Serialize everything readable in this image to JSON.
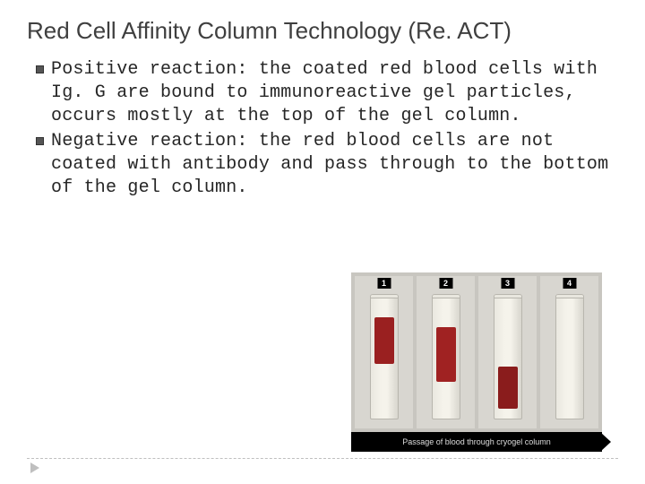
{
  "title": "Red Cell Affinity Column Technology (Re. ACT)",
  "bullets": [
    "Positive reaction: the coated red blood cells with Ig. G are bound to immunoreactive gel particles, occurs mostly at the top of the gel column.",
    "Negative reaction: the red blood cells are not coated with antibody and pass through to the bottom of the gel column."
  ],
  "figure": {
    "panels": [
      {
        "label": "1",
        "blood_top_pct": 18,
        "blood_height_pct": 38,
        "blood_color": "#9a2020"
      },
      {
        "label": "2",
        "blood_top_pct": 26,
        "blood_height_pct": 44,
        "blood_color": "#a02222"
      },
      {
        "label": "3",
        "blood_top_pct": 58,
        "blood_height_pct": 34,
        "blood_color": "#8a1c1c"
      },
      {
        "label": "4",
        "blood_top_pct": 0,
        "blood_height_pct": 0,
        "blood_color": "transparent"
      }
    ],
    "caption": "Passage of blood through cryogel column",
    "panel_bg": "#d8d6d0",
    "strip_bg": "#c8c6c0",
    "outer_bg": "#3a3a38"
  },
  "colors": {
    "title": "#3f3f3f",
    "body_text": "#262626",
    "bullet_fill": "#555555",
    "divider": "#bfbfbf"
  }
}
